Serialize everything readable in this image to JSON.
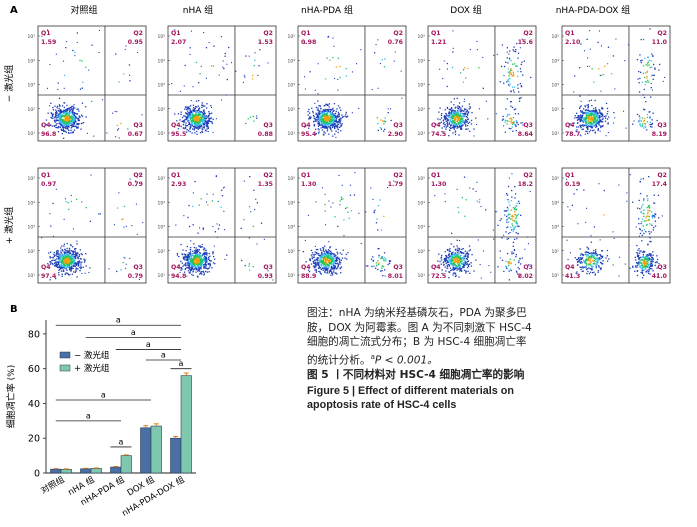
{
  "panel_a": {
    "label": "A",
    "column_titles": [
      "对照组",
      "nHA 组",
      "nHA-PDA 组",
      "DOX 组",
      "nHA-PDA-DOX 组"
    ],
    "row_labels": [
      "− 激光组",
      "+ 激光组"
    ],
    "axis_ticks": [
      "10⁵",
      "10⁴",
      "10³",
      "10²",
      "10¹"
    ],
    "quadrant_labels": [
      "Q1",
      "Q2",
      "Q3",
      "Q4"
    ],
    "plots": [
      {
        "row": 0,
        "col": 0,
        "q1": "1.59",
        "q2": "0.95",
        "q3": "0.67",
        "q4": "96.8"
      },
      {
        "row": 0,
        "col": 1,
        "q1": "2.07",
        "q2": "1.53",
        "q3": "0.88",
        "q4": "95.5"
      },
      {
        "row": 0,
        "col": 2,
        "q1": "0.98",
        "q2": "0.76",
        "q3": "2.90",
        "q4": "95.4"
      },
      {
        "row": 0,
        "col": 3,
        "q1": "1.21",
        "q2": "15.6",
        "q3": "8.64",
        "q4": "74.5"
      },
      {
        "row": 0,
        "col": 4,
        "q1": "2.10",
        "q2": "11.0",
        "q3": "8.19",
        "q4": "78.7"
      },
      {
        "row": 1,
        "col": 0,
        "q1": "0.97",
        "q2": "0.79",
        "q3": "0.79",
        "q4": "97.4"
      },
      {
        "row": 1,
        "col": 1,
        "q1": "2.93",
        "q2": "1.35",
        "q3": "0.93",
        "q4": "94.8"
      },
      {
        "row": 1,
        "col": 2,
        "q1": "1.30",
        "q2": "1.79",
        "q3": "8.01",
        "q4": "88.9"
      },
      {
        "row": 1,
        "col": 3,
        "q1": "1.30",
        "q2": "18.2",
        "q3": "8.02",
        "q4": "72.5"
      },
      {
        "row": 1,
        "col": 4,
        "q1": "0.19",
        "q2": "17.4",
        "q3": "41.0",
        "q4": "41.3"
      }
    ],
    "colors": {
      "quadrant_label": "#a3165e",
      "dots": "#1f3fb8",
      "core": "#22c55e",
      "hot": "#f59e0b"
    }
  },
  "chart_data": {
    "type": "bar",
    "panel_label": "B",
    "categories": [
      "对照组",
      "nHA 组",
      "nHA-PDA 组",
      "DOX 组",
      "nHA-PDA-DOX 组"
    ],
    "series": [
      {
        "name": "− 激光组",
        "values": [
          2.2,
          2.4,
          3.4,
          26.0,
          20.0
        ],
        "errors": [
          0.3,
          0.3,
          0.4,
          1.2,
          1.0
        ],
        "color": "#4a6fa5"
      },
      {
        "name": "+ 激光组",
        "values": [
          2.1,
          2.6,
          10.0,
          27.0,
          56.0
        ],
        "errors": [
          0.3,
          0.3,
          0.4,
          1.3,
          1.5
        ],
        "color": "#7ec8b0"
      }
    ],
    "ylabel": "细胞凋亡率 (%)",
    "yticks": [
      0,
      20,
      40,
      60,
      80
    ],
    "ylim": [
      0,
      88
    ],
    "significance": [
      {
        "from": 0,
        "to": 4,
        "label": "a",
        "level": 85
      },
      {
        "from": 1,
        "to": 4,
        "label": "a",
        "level": 78
      },
      {
        "from": 2,
        "to": 4,
        "label": "a",
        "level": 71
      },
      {
        "from": 3,
        "to": 4,
        "label": "a",
        "level": 65
      },
      {
        "from": 4,
        "to": 4,
        "label": "a",
        "level": 60
      },
      {
        "from": 0,
        "to": 3,
        "label": "a",
        "level": 42
      },
      {
        "from": 0,
        "to": 2,
        "label": "a",
        "level": 30
      },
      {
        "from": 2,
        "to": 2,
        "label": "a",
        "level": 15
      }
    ]
  },
  "caption": {
    "note_line1": "图注：nHA 为纳米羟基磷灰石，PDA 为聚多巴胺，DOX 为阿霉素。图 A 为不同刺激下 HSC-4 细胞的凋亡流式分布；B 为 HSC-4 细胞凋亡率的统计分析。",
    "sig_mark": "a",
    "p_text": "P < 0.001。",
    "fig_cn": "图 5 丨不同材料对 HSC-4 细胞凋亡率的影响",
    "fig_en": "Figure 5 | Effect of different materials on apoptosis rate of HSC-4 cells"
  }
}
